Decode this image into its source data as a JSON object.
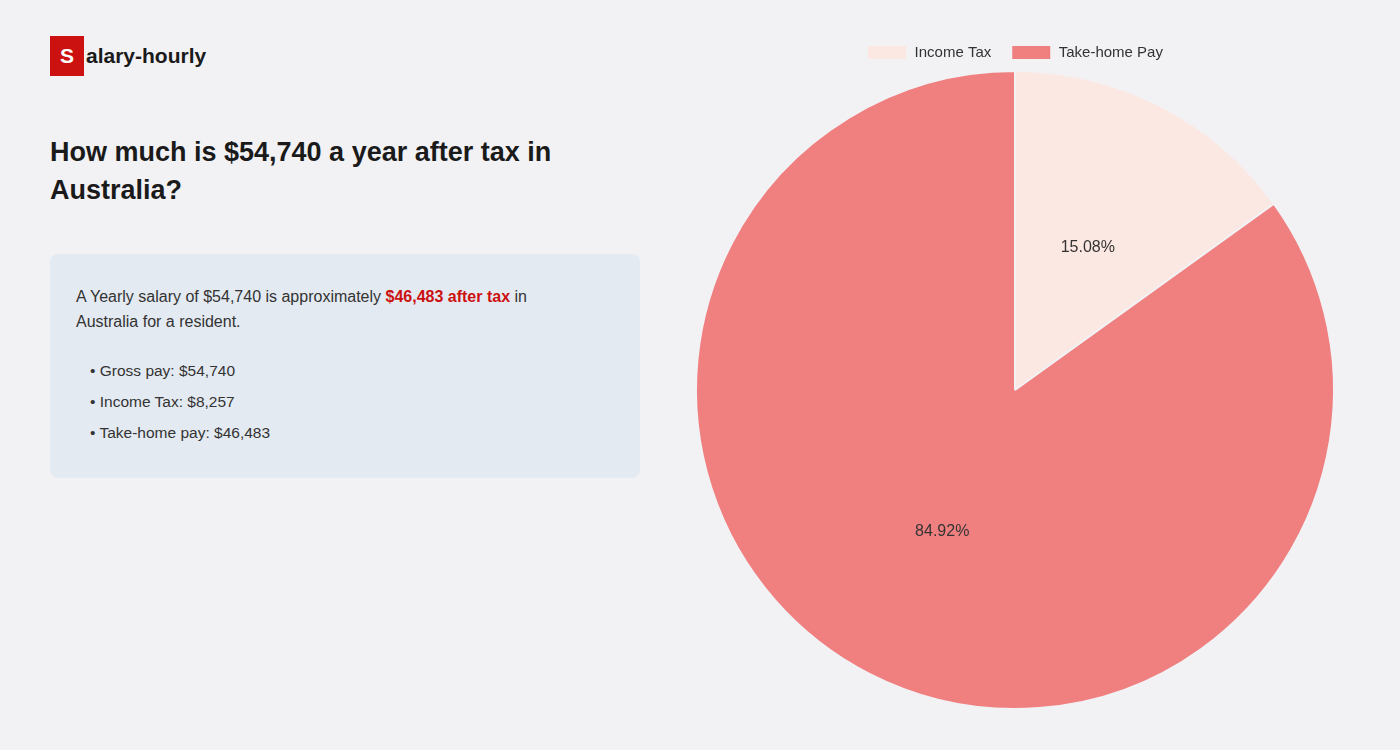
{
  "chart_data": {
    "type": "pie",
    "title": "How much is $54,740 a year after tax in\nAustralia?",
    "categories": [
      "Income Tax",
      "Take-home Pay"
    ],
    "values": [
      15.08,
      84.92
    ],
    "value_labels": [
      "15.08%",
      "84.92%"
    ],
    "colors": [
      "#fce8e2",
      "#f08080"
    ],
    "data_labels": true,
    "legend": "top",
    "annotations": [
      [
        {
          "text": "S",
          "color": "#cc1111"
        },
        {
          "text": "alary-hourly"
        }
      ],
      [
        {
          "text": "A Yearly salary of $54,740 is approximately "
        },
        {
          "text": "$46,483 after tax",
          "color": "#cc1111"
        },
        {
          "text": " in"
        }
      ],
      [
        {
          "text": "Australia for a resident."
        }
      ],
      [
        {
          "text": "• Gross pay: $54,740"
        }
      ],
      [
        {
          "text": "• Income Tax: $8,257"
        }
      ],
      [
        {
          "text": "• Take-home pay: $46,483"
        }
      ]
    ]
  }
}
